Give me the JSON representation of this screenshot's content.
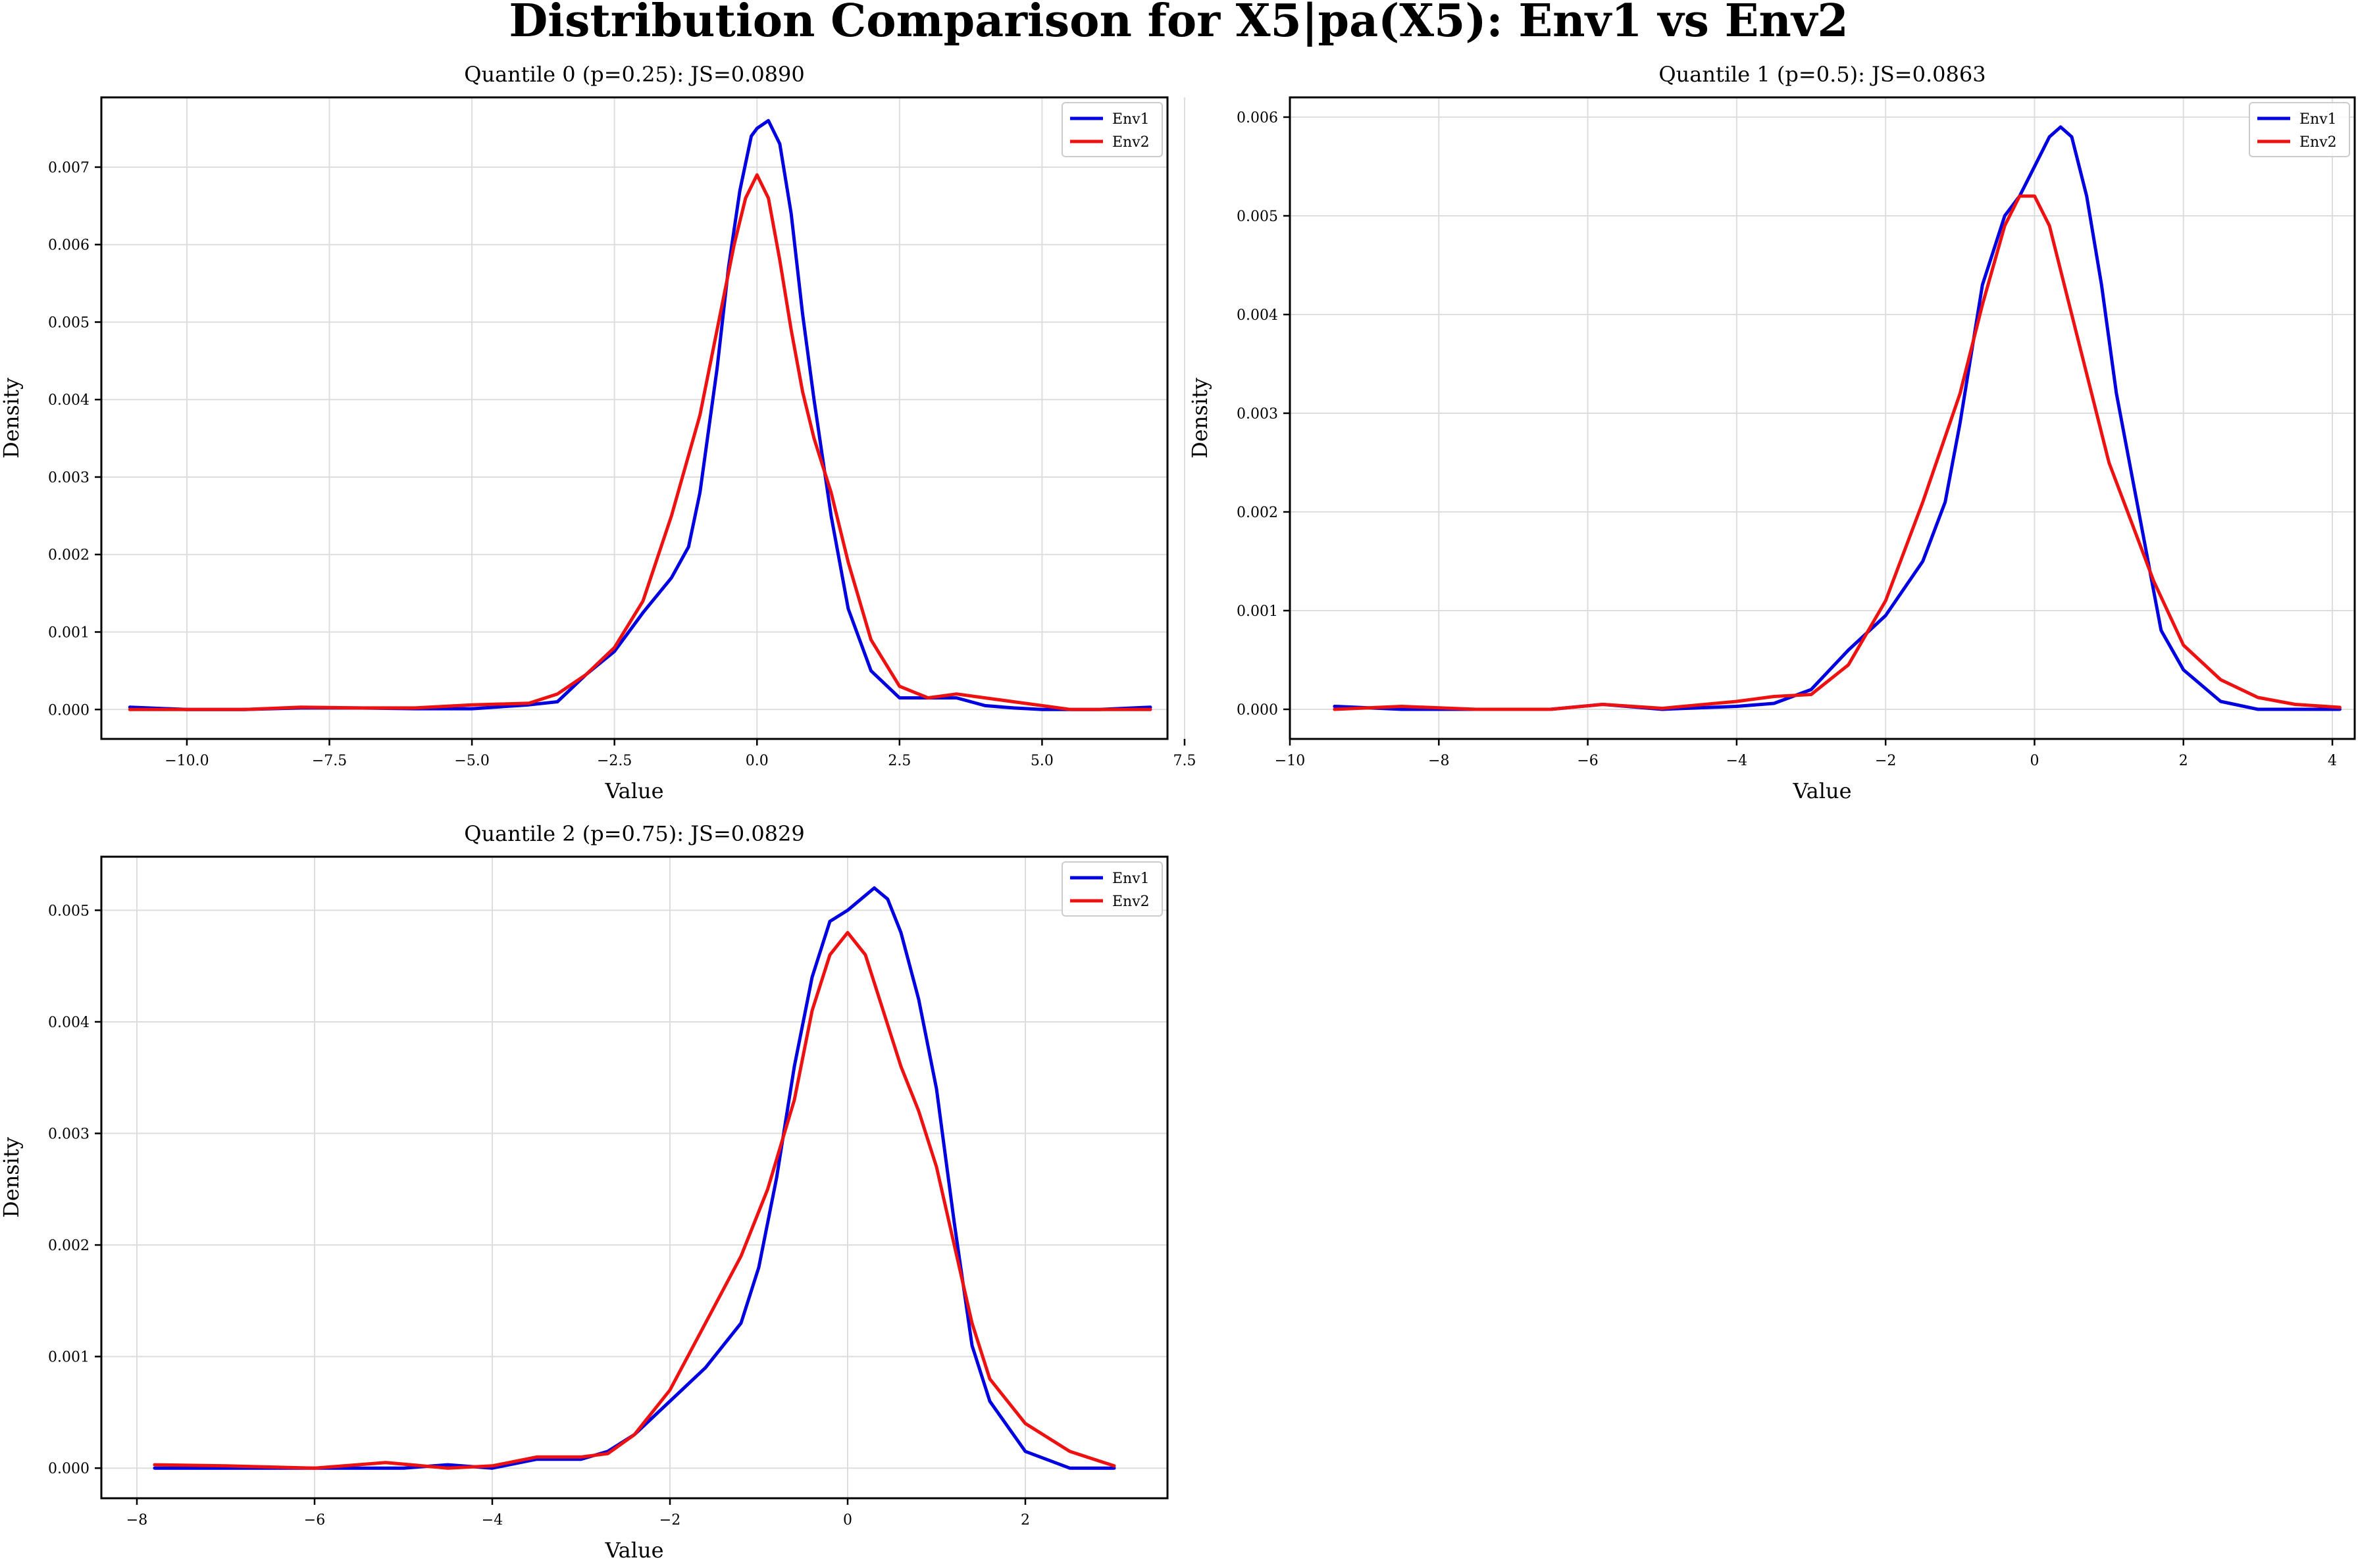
{
  "figure": {
    "title": "Distribution Comparison for X5|pa(X5): Env1 vs Env2"
  },
  "colors": {
    "Env1": "#0000e0",
    "Env2": "#ee1111"
  },
  "chart_data": [
    {
      "type": "line",
      "title": "Quantile 0 (p=0.25): JS=0.0890",
      "xlabel": "Value",
      "ylabel": "Density",
      "xlim": [
        -11.5,
        7.2
      ],
      "ylim": [
        -0.00038,
        0.0079
      ],
      "xticks": [
        -10.0,
        -7.5,
        -5.0,
        -2.5,
        0.0,
        2.5,
        5.0,
        7.5
      ],
      "xtick_labels": [
        "−10.0",
        "−7.5",
        "−5.0",
        "−2.5",
        "0.0",
        "2.5",
        "5.0",
        "7.5"
      ],
      "yticks": [
        0.0,
        0.001,
        0.002,
        0.003,
        0.004,
        0.005,
        0.006,
        0.007
      ],
      "ytick_labels": [
        "0.000",
        "0.001",
        "0.002",
        "0.003",
        "0.004",
        "0.005",
        "0.006",
        "0.007"
      ],
      "grid": true,
      "legend": "top-right",
      "series": [
        {
          "name": "Env1",
          "x": [
            -11.0,
            -10.0,
            -9.0,
            -8.0,
            -7.0,
            -6.0,
            -5.0,
            -4.0,
            -3.5,
            -3.0,
            -2.5,
            -2.0,
            -1.5,
            -1.2,
            -1.0,
            -0.7,
            -0.5,
            -0.3,
            -0.1,
            0.0,
            0.2,
            0.4,
            0.6,
            0.8,
            1.0,
            1.3,
            1.6,
            2.0,
            2.5,
            3.0,
            3.5,
            4.0,
            4.5,
            5.0,
            5.5,
            6.0,
            6.9
          ],
          "y": [
            3e-05,
            0.0,
            0.0,
            2e-05,
            2e-05,
            1e-05,
            1e-05,
            6e-05,
            0.0001,
            0.00045,
            0.00075,
            0.00125,
            0.0017,
            0.0021,
            0.0028,
            0.0044,
            0.0057,
            0.0067,
            0.0074,
            0.0075,
            0.0076,
            0.0073,
            0.0064,
            0.0051,
            0.004,
            0.0025,
            0.0013,
            0.0005,
            0.00015,
            0.00015,
            0.00015,
            5e-05,
            2e-05,
            0.0,
            0.0,
            0.0,
            3e-05
          ]
        },
        {
          "name": "Env2",
          "x": [
            -11.0,
            -10.0,
            -9.0,
            -8.0,
            -7.0,
            -6.0,
            -5.0,
            -4.0,
            -3.5,
            -3.0,
            -2.5,
            -2.0,
            -1.5,
            -1.0,
            -0.7,
            -0.4,
            -0.2,
            0.0,
            0.2,
            0.4,
            0.6,
            0.8,
            1.0,
            1.3,
            1.6,
            2.0,
            2.5,
            3.0,
            3.5,
            4.0,
            4.5,
            5.0,
            5.5,
            6.0,
            6.9
          ],
          "y": [
            0.0,
            0.0,
            0.0,
            3e-05,
            2e-05,
            2e-05,
            6e-05,
            8e-05,
            0.0002,
            0.00045,
            0.0008,
            0.0014,
            0.0025,
            0.0038,
            0.0049,
            0.006,
            0.0066,
            0.0069,
            0.0066,
            0.0058,
            0.0049,
            0.0041,
            0.0035,
            0.0028,
            0.0019,
            0.0009,
            0.0003,
            0.00015,
            0.0002,
            0.00015,
            0.0001,
            5e-05,
            0.0,
            0.0,
            0.0
          ]
        }
      ]
    },
    {
      "type": "line",
      "title": "Quantile 1 (p=0.5): JS=0.0863",
      "xlabel": "Value",
      "ylabel": "Density",
      "xlim": [
        -10.0,
        4.3
      ],
      "ylim": [
        -0.0003,
        0.0062
      ],
      "xticks": [
        -10,
        -8,
        -6,
        -4,
        -2,
        0,
        2,
        4
      ],
      "xtick_labels": [
        "−10",
        "−8",
        "−6",
        "−4",
        "−2",
        "0",
        "2",
        "4"
      ],
      "yticks": [
        0.0,
        0.001,
        0.002,
        0.003,
        0.004,
        0.005,
        0.006
      ],
      "ytick_labels": [
        "0.000",
        "0.001",
        "0.002",
        "0.003",
        "0.004",
        "0.005",
        "0.006"
      ],
      "grid": true,
      "legend": "top-right",
      "series": [
        {
          "name": "Env1",
          "x": [
            -9.4,
            -8.5,
            -7.5,
            -6.5,
            -5.8,
            -5.0,
            -4.0,
            -3.5,
            -3.0,
            -2.5,
            -2.0,
            -1.5,
            -1.2,
            -1.0,
            -0.7,
            -0.4,
            -0.2,
            0.0,
            0.2,
            0.35,
            0.5,
            0.7,
            0.9,
            1.1,
            1.4,
            1.7,
            2.0,
            2.5,
            3.0,
            3.5,
            4.1
          ],
          "y": [
            3e-05,
            0.0,
            0.0,
            0.0,
            5e-05,
            0.0,
            3e-05,
            6e-05,
            0.0002,
            0.0006,
            0.00095,
            0.0015,
            0.0021,
            0.0029,
            0.0043,
            0.005,
            0.0052,
            0.0055,
            0.0058,
            0.0059,
            0.0058,
            0.0052,
            0.0043,
            0.0032,
            0.002,
            0.0008,
            0.0004,
            8e-05,
            0.0,
            0.0,
            0.0
          ]
        },
        {
          "name": "Env2",
          "x": [
            -9.4,
            -8.5,
            -7.5,
            -6.5,
            -5.8,
            -5.0,
            -4.0,
            -3.5,
            -3.0,
            -2.5,
            -2.0,
            -1.5,
            -1.0,
            -0.7,
            -0.4,
            -0.2,
            0.0,
            0.2,
            0.4,
            0.7,
            1.0,
            1.3,
            1.6,
            2.0,
            2.5,
            3.0,
            3.5,
            4.1
          ],
          "y": [
            0.0,
            3e-05,
            0.0,
            0.0,
            5e-05,
            1e-05,
            8e-05,
            0.00013,
            0.00015,
            0.00045,
            0.0011,
            0.0021,
            0.0032,
            0.0041,
            0.0049,
            0.0052,
            0.0052,
            0.0049,
            0.0043,
            0.0034,
            0.0025,
            0.0019,
            0.0013,
            0.00065,
            0.0003,
            0.00012,
            5e-05,
            2e-05
          ]
        }
      ]
    },
    {
      "type": "line",
      "title": "Quantile 2 (p=0.75): JS=0.0829",
      "xlabel": "Value",
      "ylabel": "Density",
      "xlim": [
        -8.4,
        3.6
      ],
      "ylim": [
        -0.00027,
        0.00548
      ],
      "xticks": [
        -8,
        -6,
        -4,
        -2,
        0,
        2
      ],
      "xtick_labels": [
        "−8",
        "−6",
        "−4",
        "−2",
        "0",
        "2"
      ],
      "yticks": [
        0.0,
        0.001,
        0.002,
        0.003,
        0.004,
        0.005
      ],
      "ytick_labels": [
        "0.000",
        "0.001",
        "0.002",
        "0.003",
        "0.004",
        "0.005"
      ],
      "grid": true,
      "legend": "top-right",
      "series": [
        {
          "name": "Env1",
          "x": [
            -7.8,
            -7.0,
            -6.0,
            -5.0,
            -4.5,
            -4.0,
            -3.5,
            -3.0,
            -2.7,
            -2.4,
            -2.0,
            -1.6,
            -1.2,
            -1.0,
            -0.8,
            -0.6,
            -0.4,
            -0.2,
            0.0,
            0.15,
            0.3,
            0.45,
            0.6,
            0.8,
            1.0,
            1.2,
            1.4,
            1.6,
            2.0,
            2.5,
            3.0
          ],
          "y": [
            0.0,
            0.0,
            0.0,
            0.0,
            3e-05,
            0.0,
            8e-05,
            8e-05,
            0.00015,
            0.0003,
            0.0006,
            0.0009,
            0.0013,
            0.0018,
            0.0026,
            0.0036,
            0.0044,
            0.0049,
            0.005,
            0.0051,
            0.0052,
            0.0051,
            0.0048,
            0.0042,
            0.0034,
            0.0022,
            0.0011,
            0.0006,
            0.00015,
            0.0,
            0.0
          ]
        },
        {
          "name": "Env2",
          "x": [
            -7.8,
            -7.0,
            -6.0,
            -5.2,
            -4.5,
            -4.0,
            -3.5,
            -3.0,
            -2.7,
            -2.4,
            -2.0,
            -1.6,
            -1.2,
            -0.9,
            -0.6,
            -0.4,
            -0.2,
            0.0,
            0.2,
            0.4,
            0.6,
            0.8,
            1.0,
            1.2,
            1.4,
            1.6,
            2.0,
            2.5,
            3.0
          ],
          "y": [
            3e-05,
            2e-05,
            0.0,
            5e-05,
            0.0,
            2e-05,
            0.0001,
            0.0001,
            0.00013,
            0.0003,
            0.0007,
            0.0013,
            0.0019,
            0.0025,
            0.0033,
            0.0041,
            0.0046,
            0.0048,
            0.0046,
            0.0041,
            0.0036,
            0.0032,
            0.0027,
            0.002,
            0.0013,
            0.0008,
            0.0004,
            0.00015,
            2e-05
          ]
        }
      ]
    }
  ]
}
